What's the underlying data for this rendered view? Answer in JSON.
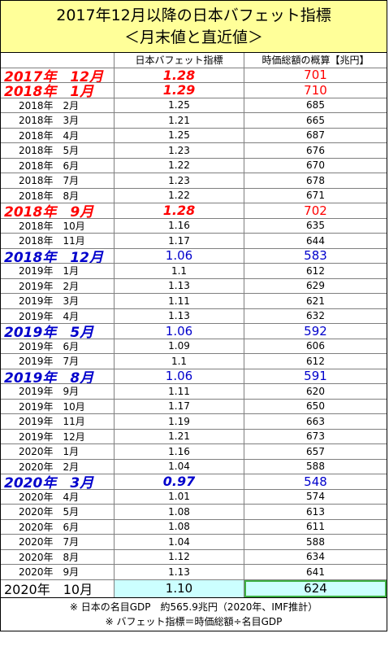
{
  "title": {
    "line1": "2017年12月以降の日本バフェット指標",
    "line2": "＜月末値と直近値＞"
  },
  "header": {
    "col1": "",
    "col2": "日本バフェット指標",
    "col3": "時価総額の概算【兆円】"
  },
  "rows": [
    {
      "label": "2017年　12月",
      "ratio": "1.28",
      "cap": "701",
      "style": "red"
    },
    {
      "label": "2018年　1月",
      "ratio": "1.29",
      "cap": "710",
      "style": "red"
    },
    {
      "label": "2018年　2月",
      "ratio": "1.25",
      "cap": "685",
      "style": "normal"
    },
    {
      "label": "2018年　3月",
      "ratio": "1.21",
      "cap": "665",
      "style": "normal"
    },
    {
      "label": "2018年　4月",
      "ratio": "1.25",
      "cap": "687",
      "style": "normal"
    },
    {
      "label": "2018年　5月",
      "ratio": "1.23",
      "cap": "676",
      "style": "normal"
    },
    {
      "label": "2018年　6月",
      "ratio": "1.22",
      "cap": "670",
      "style": "normal"
    },
    {
      "label": "2018年　7月",
      "ratio": "1.23",
      "cap": "678",
      "style": "normal"
    },
    {
      "label": "2018年　8月",
      "ratio": "1.22",
      "cap": "671",
      "style": "normal"
    },
    {
      "label": "2018年　9月",
      "ratio": "1.28",
      "cap": "702",
      "style": "red"
    },
    {
      "label": "2018年　10月",
      "ratio": "1.16",
      "cap": "635",
      "style": "normal"
    },
    {
      "label": "2018年　11月",
      "ratio": "1.17",
      "cap": "644",
      "style": "normal"
    },
    {
      "label": "2018年　12月",
      "ratio": "1.06",
      "cap": "583",
      "style": "blue-nb"
    },
    {
      "label": "2019年　1月",
      "ratio": "1.1",
      "cap": "612",
      "style": "normal"
    },
    {
      "label": "2019年　2月",
      "ratio": "1.13",
      "cap": "629",
      "style": "normal"
    },
    {
      "label": "2019年　3月",
      "ratio": "1.11",
      "cap": "621",
      "style": "normal"
    },
    {
      "label": "2019年　4月",
      "ratio": "1.13",
      "cap": "632",
      "style": "normal"
    },
    {
      "label": "2019年　5月",
      "ratio": "1.06",
      "cap": "592",
      "style": "blue-nb"
    },
    {
      "label": "2019年　6月",
      "ratio": "1.09",
      "cap": "606",
      "style": "normal"
    },
    {
      "label": "2019年　7月",
      "ratio": "1.1",
      "cap": "612",
      "style": "normal"
    },
    {
      "label": "2019年　8月",
      "ratio": "1.06",
      "cap": "591",
      "style": "blue-nb"
    },
    {
      "label": "2019年　9月",
      "ratio": "1.11",
      "cap": "620",
      "style": "normal"
    },
    {
      "label": "2019年　10月",
      "ratio": "1.17",
      "cap": "650",
      "style": "normal"
    },
    {
      "label": "2019年　11月",
      "ratio": "1.19",
      "cap": "663",
      "style": "normal"
    },
    {
      "label": "2019年　12月",
      "ratio": "1.21",
      "cap": "673",
      "style": "normal"
    },
    {
      "label": "2020年　1月",
      "ratio": "1.16",
      "cap": "657",
      "style": "normal"
    },
    {
      "label": "2020年　2月",
      "ratio": "1.04",
      "cap": "588",
      "style": "normal"
    },
    {
      "label": "2020年　3月",
      "ratio": "0.97",
      "cap": "548",
      "style": "blue"
    },
    {
      "label": "2020年　4月",
      "ratio": "1.01",
      "cap": "574",
      "style": "normal"
    },
    {
      "label": "2020年　5月",
      "ratio": "1.08",
      "cap": "613",
      "style": "normal"
    },
    {
      "label": "2020年　6月",
      "ratio": "1.08",
      "cap": "611",
      "style": "normal"
    },
    {
      "label": "2020年　7月",
      "ratio": "1.04",
      "cap": "588",
      "style": "normal"
    },
    {
      "label": "2020年　8月",
      "ratio": "1.12",
      "cap": "634",
      "style": "normal"
    },
    {
      "label": "2020年　9月",
      "ratio": "1.13",
      "cap": "641",
      "style": "normal"
    }
  ],
  "final": {
    "label": "2020年　10月",
    "ratio": "1.10",
    "cap": "624"
  },
  "notes": {
    "line1": "※ 日本の名目GDP　約565.9兆円（2020年、IMF推計）",
    "line2": "※ バフェット指標＝時価総額÷名目GDP"
  },
  "colors": {
    "title_bg": "#ffff99",
    "highlight_red": "#ff0000",
    "highlight_blue": "#0000cc",
    "final_bg": "#ccffff",
    "selection_border": "#3cb043"
  }
}
